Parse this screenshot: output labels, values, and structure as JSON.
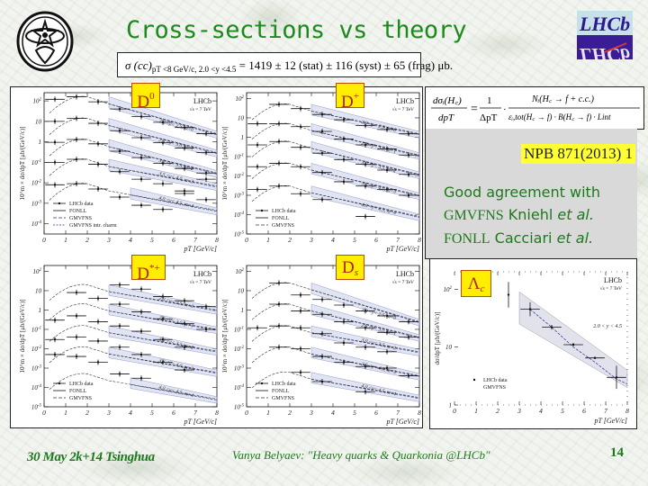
{
  "slide": {
    "title": "Cross-sections vs theory",
    "page_number": "14",
    "logos": {
      "left": "university-emblem",
      "right": "LHCb"
    }
  },
  "formula": {
    "lhs": "σ (cc)",
    "subscript": "pT <8 GeV/c, 2.0 <y <4.5",
    "rhs": "= 1419 ± 12 (stat) ± 116 (syst) ± 65 (frag) μb."
  },
  "equation": {
    "lhs_num": "dσᵢ(H꜀)",
    "lhs_den": "dpT",
    "eq": "=",
    "frac1_num": "1",
    "frac1_den": "ΔpT",
    "dot": "·",
    "frac2_num": "Nᵢ(H꜀ → f + c.c.)",
    "frac2_den": "εᵢ,tot(H꜀ → f) · B(H꜀ → f) · Lint"
  },
  "reference": "NPB 871(2013) 1",
  "conclusion": {
    "line1": "Good agreement with",
    "line2_a": "GMVFNS",
    "line2_b": " Kniehl ",
    "line2_c": "et al.",
    "line3_a": "FONLL",
    "line3_b": " Cacciari ",
    "line3_c": "et al."
  },
  "footer": {
    "date": "30 May 2k+14 Tsinghua",
    "author": "Vanya Belyaev: \"Heavy quarks & Quarkonia @LHCb\""
  },
  "labels": {
    "D0": {
      "base": "D",
      "sup": "0",
      "sub": ""
    },
    "Dplus": {
      "base": "D",
      "sup": "+",
      "sub": ""
    },
    "Dstar": {
      "base": "D",
      "sup": "*+",
      "sub": ""
    },
    "Ds": {
      "base": "D",
      "sup": "",
      "sub": "s"
    },
    "Lc": {
      "base": "Λ",
      "sup": "",
      "sub": "c"
    }
  },
  "chart_data": [
    {
      "type": "line",
      "title": "D0",
      "experiment": "LHCb",
      "energy": "√s = 7 TeV",
      "xlabel": "pT [GeV/c]",
      "ylabel": "10^m × dσ/dpT [μb/(GeV/c)]",
      "x_ticks": [
        "0",
        "1",
        "2",
        "3",
        "4",
        "5",
        "6",
        "7",
        "8"
      ],
      "y_ticks": [
        "10^-4",
        "10^-3",
        "10^-2",
        "10^-1",
        "1",
        "10",
        "10^2"
      ],
      "yscale": "log",
      "xlim": [
        0,
        8
      ],
      "ylim": [
        0.0001,
        300
      ],
      "legend": [
        "LHCb data",
        "FONLL",
        "GMVFNS",
        "GMVFNS intr. charm"
      ],
      "x": [
        0.5,
        1.5,
        2.5,
        3.5,
        4.5,
        5.5,
        6.5,
        7.5
      ],
      "series": [
        {
          "name": "2.0<y<2.5, m=0",
          "values": [
            120,
            160,
            90,
            40,
            17,
            9,
            5,
            2.5
          ]
        },
        {
          "name": "2.5<y<3.0, m=1",
          "values": [
            10,
            14,
            8,
            3.5,
            1.6,
            0.9,
            0.5,
            0.3
          ]
        },
        {
          "name": "3.0<y<3.5, m=2",
          "values": [
            0.95,
            1.3,
            0.8,
            0.35,
            0.17,
            0.09,
            0.05,
            0.03
          ]
        },
        {
          "name": "3.5<y<4.0, m=3",
          "values": [
            0.1,
            0.14,
            0.08,
            0.035,
            0.015,
            0.009,
            0.004,
            0.015
          ]
        },
        {
          "name": "4.0<y<4.5, m=4",
          "values": [
            0.008,
            0.009,
            0.005,
            0.002,
            0.0008,
            0.0005,
            0.003,
            0.0015
          ]
        }
      ]
    },
    {
      "type": "line",
      "title": "D+",
      "experiment": "LHCb",
      "energy": "√s = 7 TeV",
      "xlabel": "pT [GeV/c]",
      "ylabel": "10^m × dσ/dpT [μb/(GeV/c)]",
      "x_ticks": [
        "0",
        "1",
        "2",
        "3",
        "4",
        "5",
        "6",
        "7",
        "8"
      ],
      "y_ticks": [
        "10^-5",
        "10^-4",
        "10^-3",
        "10^-2",
        "10^-1",
        "1",
        "10",
        "10^2"
      ],
      "yscale": "log",
      "xlim": [
        0,
        8
      ],
      "legend": [
        "LHCb data",
        "FONLL",
        "GMVFNS"
      ],
      "x": [
        0.5,
        1.5,
        2.5,
        3.5,
        4.5,
        5.5,
        6.5,
        7.5
      ],
      "series": [
        {
          "name": "2.0<y<2.5, m=0",
          "values": [
            null,
            50,
            30,
            15,
            8,
            4,
            2.5,
            1.5
          ]
        },
        {
          "name": "2.5<y<3.0, m=1",
          "values": [
            5,
            5,
            3.5,
            2,
            0.8,
            0.4,
            0.25,
            0.12
          ]
        },
        {
          "name": "3.0<y<3.5, m=2",
          "values": [
            0.4,
            0.6,
            0.3,
            0.15,
            0.07,
            0.04,
            0.02,
            0.012
          ]
        },
        {
          "name": "3.5<y<4.0, m=3",
          "values": [
            0.03,
            0.045,
            0.03,
            0.015,
            0.005,
            0.003,
            0.002,
            0.001
          ]
        },
        {
          "name": "4.0<y<4.5, m=4",
          "values": [
            0.002,
            0.003,
            0.0012,
            0.0006,
            null,
            8e-05,
            null,
            null
          ]
        }
      ]
    },
    {
      "type": "line",
      "title": "D*+",
      "experiment": "LHCb",
      "energy": "√s = 7 TeV",
      "xlabel": "pT [GeV/c]",
      "ylabel": "10^m × dσ/dpT [μb/(GeV/c)]",
      "x_ticks": [
        "0",
        "1",
        "2",
        "3",
        "4",
        "5",
        "6",
        "7",
        "8"
      ],
      "y_ticks": [
        "10^-5",
        "10^-4",
        "10^-3",
        "10^-2",
        "10^-1",
        "1",
        "10",
        "10^2"
      ],
      "yscale": "log",
      "xlim": [
        0,
        8
      ],
      "legend": [
        "LHCb data",
        "FONLL",
        "GMVFNS"
      ],
      "x": [
        0.5,
        1.5,
        2.5,
        3.5,
        4.5,
        5.5,
        6.5,
        7.5
      ],
      "series": [
        {
          "name": "2.0<y<2.5, m=0",
          "values": [
            null,
            8,
            4,
            20,
            12,
            5,
            3,
            1.5
          ]
        },
        {
          "name": "2.5<y<3.0, m=1",
          "values": [
            0.3,
            0.5,
            0.25,
            2,
            0.8,
            0.35,
            0.2,
            0.1
          ]
        },
        {
          "name": "3.0<y<3.5, m=2",
          "values": [
            0.03,
            0.04,
            0.025,
            0.15,
            0.08,
            0.03,
            0.012,
            null
          ]
        },
        {
          "name": "3.5<y<4.0, m=3",
          "values": [
            0.005,
            0.004,
            0.002,
            0.012,
            0.005,
            0.002,
            0.0008,
            null
          ]
        },
        {
          "name": "4.0<y<4.5, m=4",
          "values": [
            null,
            null,
            null,
            0.0005,
            0.0003,
            null,
            null,
            null
          ]
        }
      ]
    },
    {
      "type": "line",
      "title": "Ds",
      "experiment": "LHCb",
      "energy": "√s = 7 TeV",
      "xlabel": "pT [GeV/c]",
      "ylabel": "10^m × dσ/dpT [μb/(GeV/c)]",
      "x_ticks": [
        "0",
        "1",
        "2",
        "3",
        "4",
        "5",
        "6",
        "7",
        "8"
      ],
      "y_ticks": [
        "10^-5",
        "10^-4",
        "10^-3",
        "10^-2",
        "10^-1",
        "1",
        "10",
        "10^2"
      ],
      "yscale": "log",
      "xlim": [
        0,
        8
      ],
      "legend": [
        "LHCb data",
        "FONLL",
        "GMVFNS"
      ],
      "x": [
        0.5,
        1.5,
        2.5,
        3.5,
        4.5,
        5.5,
        6.5,
        7.5
      ],
      "series": [
        {
          "name": "2.0<y<2.5, m=0",
          "values": [
            null,
            25,
            6,
            3.5,
            1.8,
            0.9,
            0.5,
            0.25
          ]
        },
        {
          "name": "2.5<y<3.0, m=1",
          "values": [
            null,
            2,
            0.9,
            0.6,
            0.25,
            0.12,
            0.07,
            0.04
          ]
        },
        {
          "name": "3.0<y<3.5, m=2",
          "values": [
            0.12,
            0.15,
            0.12,
            0.06,
            0.02,
            0.012,
            0.007,
            null
          ]
        },
        {
          "name": "3.5<y<4.0, m=3",
          "values": [
            null,
            0.012,
            0.01,
            0.004,
            0.002,
            0.0012,
            0.001,
            0.0004
          ]
        },
        {
          "name": "4.0<y<4.5, m=4",
          "values": [
            null,
            null,
            0.0006,
            0.0002,
            null,
            6e-05,
            null,
            null
          ]
        }
      ]
    },
    {
      "type": "line",
      "title": "Λc",
      "experiment": "LHCb",
      "energy": "√s = 7 TeV",
      "annotation": "2.0 < y < 4.5",
      "xlabel": "pT [GeV/c]",
      "ylabel": "dσ/dpT [μb/(GeV/c)]",
      "x_ticks": [
        "0",
        "1",
        "2",
        "3",
        "4",
        "5",
        "6",
        "7",
        "8"
      ],
      "y_ticks": [
        "1",
        "10",
        "10^2"
      ],
      "yscale": "log",
      "xlim": [
        0,
        8
      ],
      "ylim": [
        1,
        200
      ],
      "legend": [
        "LHCb data",
        "GMVFNS"
      ],
      "x": [
        2.5,
        3.5,
        4.5,
        5.5,
        6.5,
        7.5
      ],
      "series": [
        {
          "name": "LHCb data",
          "values": [
            80,
            45,
            22,
            11,
            6.5,
            3
          ]
        },
        {
          "name": "GMVFNS",
          "values": [
            null,
            45,
            22,
            10,
            5.5,
            2.8
          ]
        }
      ]
    }
  ]
}
